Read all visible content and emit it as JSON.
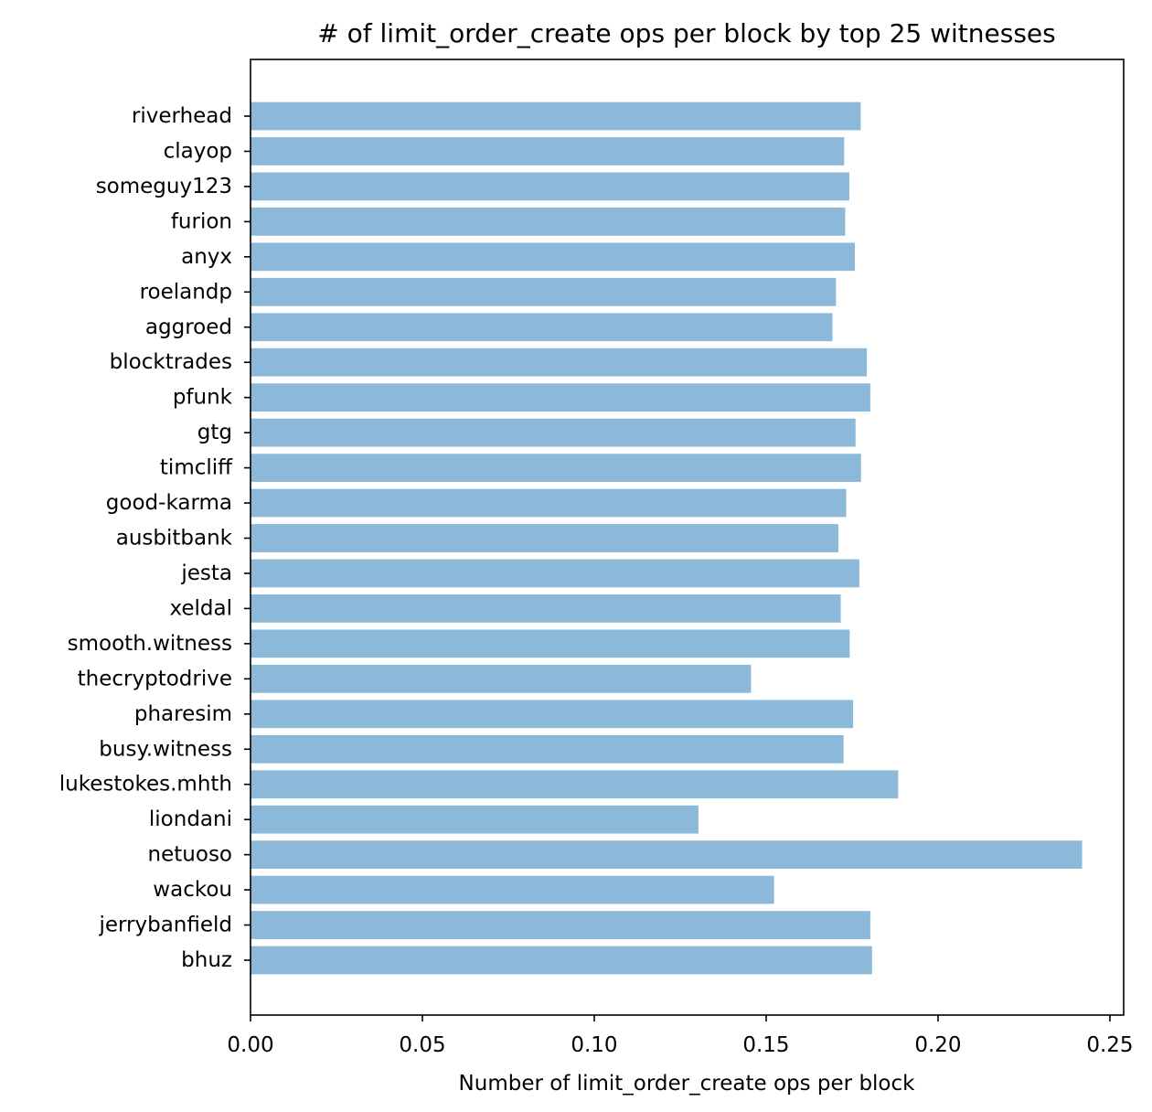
{
  "chart_data": {
    "type": "bar",
    "orientation": "horizontal",
    "title": "# of limit_order_create ops per block by top 25 witnesses",
    "xlabel": "Number of limit_order_create ops per block",
    "ylabel": "",
    "xlim": [
      0,
      0.254
    ],
    "xticks": [
      "0.00",
      "0.05",
      "0.10",
      "0.15",
      "0.20",
      "0.25"
    ],
    "xtick_values": [
      0.0,
      0.05,
      0.1,
      0.15,
      0.2,
      0.25
    ],
    "grid": false,
    "bar_color": "#8cb9da",
    "categories": [
      "riverhead",
      "clayop",
      "someguy123",
      "furion",
      "anyx",
      "roelandp",
      "aggroed",
      "blocktrades",
      "pfunk",
      "gtg",
      "timcliff",
      "good-karma",
      "ausbitbank",
      "jesta",
      "xeldal",
      "smooth.witness",
      "thecryptodrive",
      "pharesim",
      "busy.witness",
      "lukestokes.mhth",
      "liondani",
      "netuoso",
      "wackou",
      "jerrybanfield",
      "bhuz"
    ],
    "values": [
      0.1775,
      0.1727,
      0.1742,
      0.173,
      0.1758,
      0.1703,
      0.1693,
      0.1793,
      0.1803,
      0.176,
      0.1776,
      0.1733,
      0.171,
      0.1771,
      0.1717,
      0.1743,
      0.1456,
      0.1753,
      0.1725,
      0.1884,
      0.1303,
      0.2419,
      0.1523,
      0.1803,
      0.1808
    ]
  }
}
